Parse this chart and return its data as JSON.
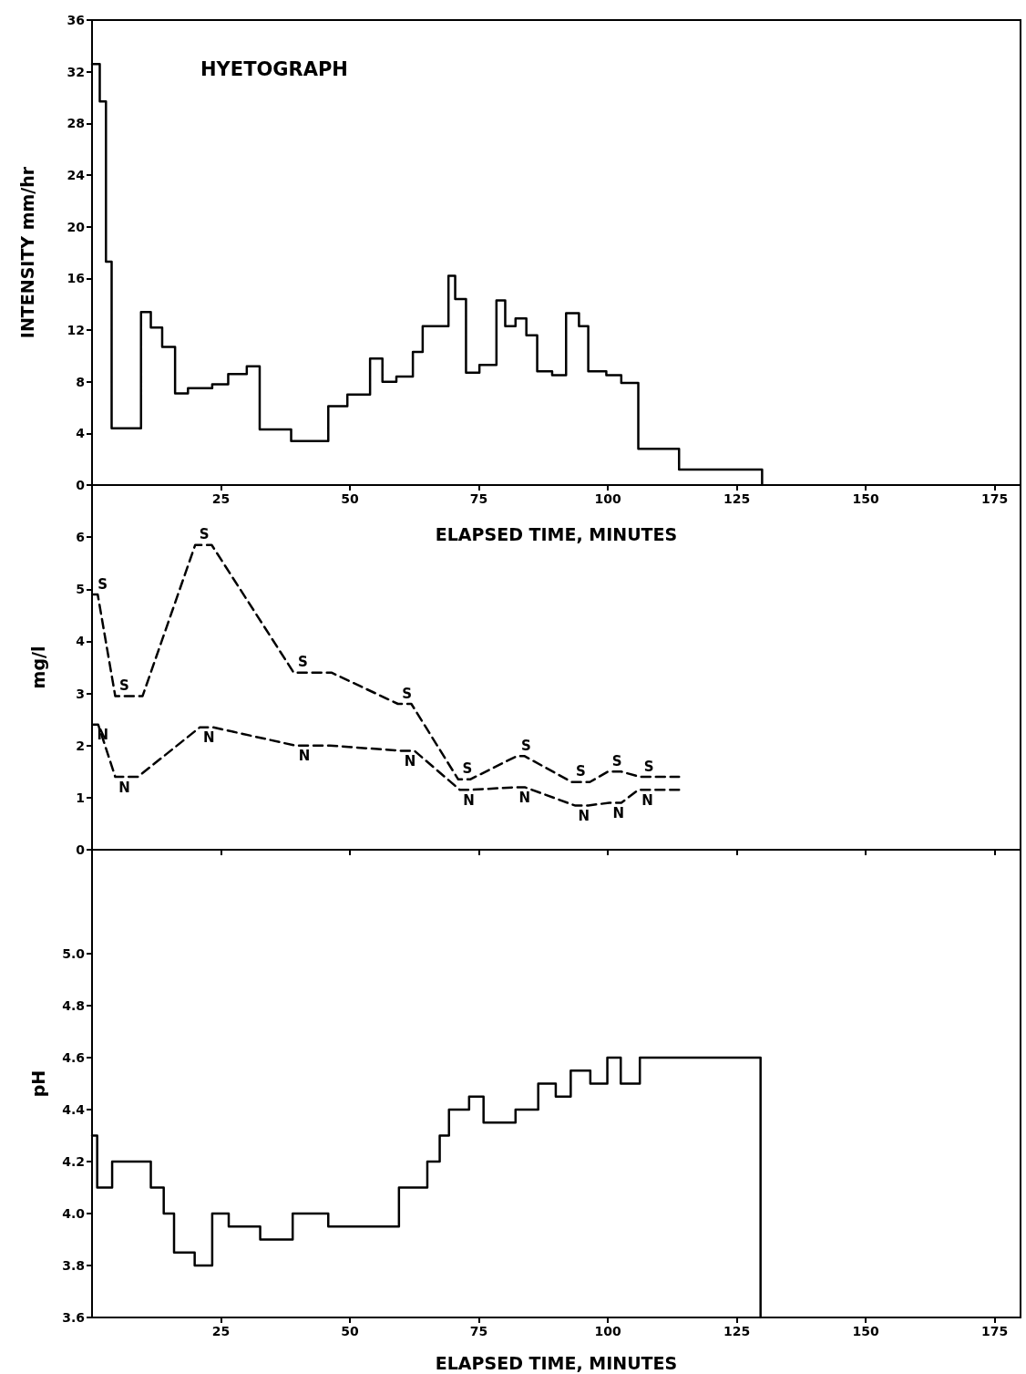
{
  "chart_data": [
    {
      "type": "step",
      "title": "HYETOGRAPH",
      "xlabel": "ELAPSED TIME, MINUTES",
      "ylabel": "INTENSITY mm/hr",
      "marker": "none",
      "xlim": [
        0,
        180
      ],
      "xticks": [
        25,
        50,
        75,
        100,
        125,
        150,
        175
      ],
      "ylim": [
        0,
        36
      ],
      "yticks": [
        0,
        4,
        8,
        12,
        16,
        20,
        24,
        28,
        32,
        36
      ],
      "series": [
        {
          "color": "#000000",
          "x": [
            0,
            1.5,
            2.7,
            3.8,
            9.5,
            11.4,
            13.6,
            16.1,
            18.6,
            23.3,
            26.4,
            30.0,
            32.5,
            38.6,
            45.8,
            49.5,
            53.9,
            56.3,
            59.0,
            62.2,
            64.1,
            69.1,
            70.4,
            72.5,
            75.1,
            78.4,
            80.1,
            82.1,
            84.2,
            86.3,
            89.2,
            91.9,
            94.4,
            96.2,
            99.7,
            102.6,
            105.9,
            113.8,
            129.9
          ],
          "values": [
            32.6,
            29.7,
            17.3,
            4.4,
            13.4,
            12.2,
            10.7,
            7.1,
            7.5,
            7.8,
            8.6,
            9.2,
            4.3,
            3.4,
            6.1,
            7.0,
            9.8,
            8.0,
            8.4,
            10.3,
            12.3,
            16.2,
            14.4,
            8.7,
            9.3,
            14.3,
            12.3,
            12.9,
            11.6,
            8.8,
            8.5,
            13.3,
            12.3,
            8.8,
            8.5,
            7.9,
            2.8,
            1.2,
            0
          ]
        }
      ]
    },
    {
      "type": "line",
      "ylabel": "mg/l",
      "marker": "none",
      "tick_labels": "y",
      "xlim": [
        0,
        180
      ],
      "xticks": [
        25,
        50,
        75,
        100,
        125,
        150,
        175
      ],
      "ylim": [
        0,
        7
      ],
      "yticks": [
        0,
        1,
        2,
        3,
        4,
        5,
        6
      ],
      "series": [
        {
          "color": "#000000",
          "line_style": "dashed",
          "x": [
            0.3,
            1.1,
            4.5,
            9.8,
            20.0,
            23.2,
            39.1,
            46.4,
            59.3,
            61.9,
            71.0,
            73.3,
            82.4,
            83.8,
            93.0,
            96.5,
            100.0,
            102.6,
            106.2,
            113.8
          ],
          "values": [
            4.9,
            4.9,
            2.95,
            2.95,
            5.85,
            5.85,
            3.4,
            3.4,
            2.8,
            2.8,
            1.35,
            1.35,
            1.8,
            1.8,
            1.3,
            1.3,
            1.5,
            1.5,
            1.4,
            1.4
          ],
          "value_labels": [
            "S",
            null,
            "S",
            null,
            "S",
            null,
            "S",
            null,
            "S",
            null,
            "S",
            null,
            "S",
            null,
            "S",
            null,
            "S",
            null,
            "S",
            null
          ]
        },
        {
          "color": "#000000",
          "line_style": "dashed",
          "x": [
            0.3,
            1.2,
            4.5,
            8.9,
            20.9,
            23.5,
            39.4,
            46.1,
            59.9,
            62.5,
            71.3,
            73.3,
            82.1,
            83.9,
            93.6,
            96.2,
            100.3,
            102.6,
            105.9,
            113.8
          ],
          "values": [
            2.4,
            2.4,
            1.4,
            1.4,
            2.35,
            2.35,
            2.0,
            2.0,
            1.9,
            1.9,
            1.15,
            1.15,
            1.2,
            1.2,
            0.85,
            0.85,
            0.9,
            0.9,
            1.15,
            1.15
          ],
          "value_labels": [
            "N",
            null,
            "N",
            null,
            "N",
            null,
            "N",
            null,
            "N",
            null,
            "N",
            null,
            "N",
            null,
            "N",
            null,
            "N",
            null,
            "N",
            null
          ]
        }
      ]
    },
    {
      "type": "step",
      "xlabel": "ELAPSED TIME, MINUTES",
      "ylabel": "pH",
      "marker": "none",
      "xlim": [
        0,
        180
      ],
      "xticks": [
        25,
        50,
        75,
        100,
        125,
        150,
        175
      ],
      "ylim": [
        3.6,
        5.4
      ],
      "yticks": [
        3.6,
        3.8,
        {
          "value": 4,
          "label": "4.0"
        },
        4.2,
        4.4,
        4.6,
        4.8,
        {
          "value": 5,
          "label": "5.0"
        }
      ],
      "series": [
        {
          "color": "#000000",
          "x": [
            0,
            1.0,
            3.9,
            11.4,
            13.9,
            15.9,
            19.9,
            23.3,
            26.5,
            32.6,
            38.9,
            45.8,
            59.5,
            65.0,
            67.4,
            69.2,
            73.1,
            75.9,
            82.1,
            86.5,
            89.9,
            92.8,
            96.6,
            99.9,
            102.5,
            106.2,
            129.6
          ],
          "values": [
            4.3,
            4.1,
            4.2,
            4.1,
            4.0,
            3.85,
            3.8,
            4.0,
            3.95,
            3.9,
            4.0,
            3.95,
            4.1,
            4.2,
            4.3,
            4.4,
            4.45,
            4.35,
            4.4,
            4.5,
            4.45,
            4.55,
            4.5,
            4.6,
            4.5,
            4.6,
            3.6
          ]
        }
      ]
    }
  ]
}
